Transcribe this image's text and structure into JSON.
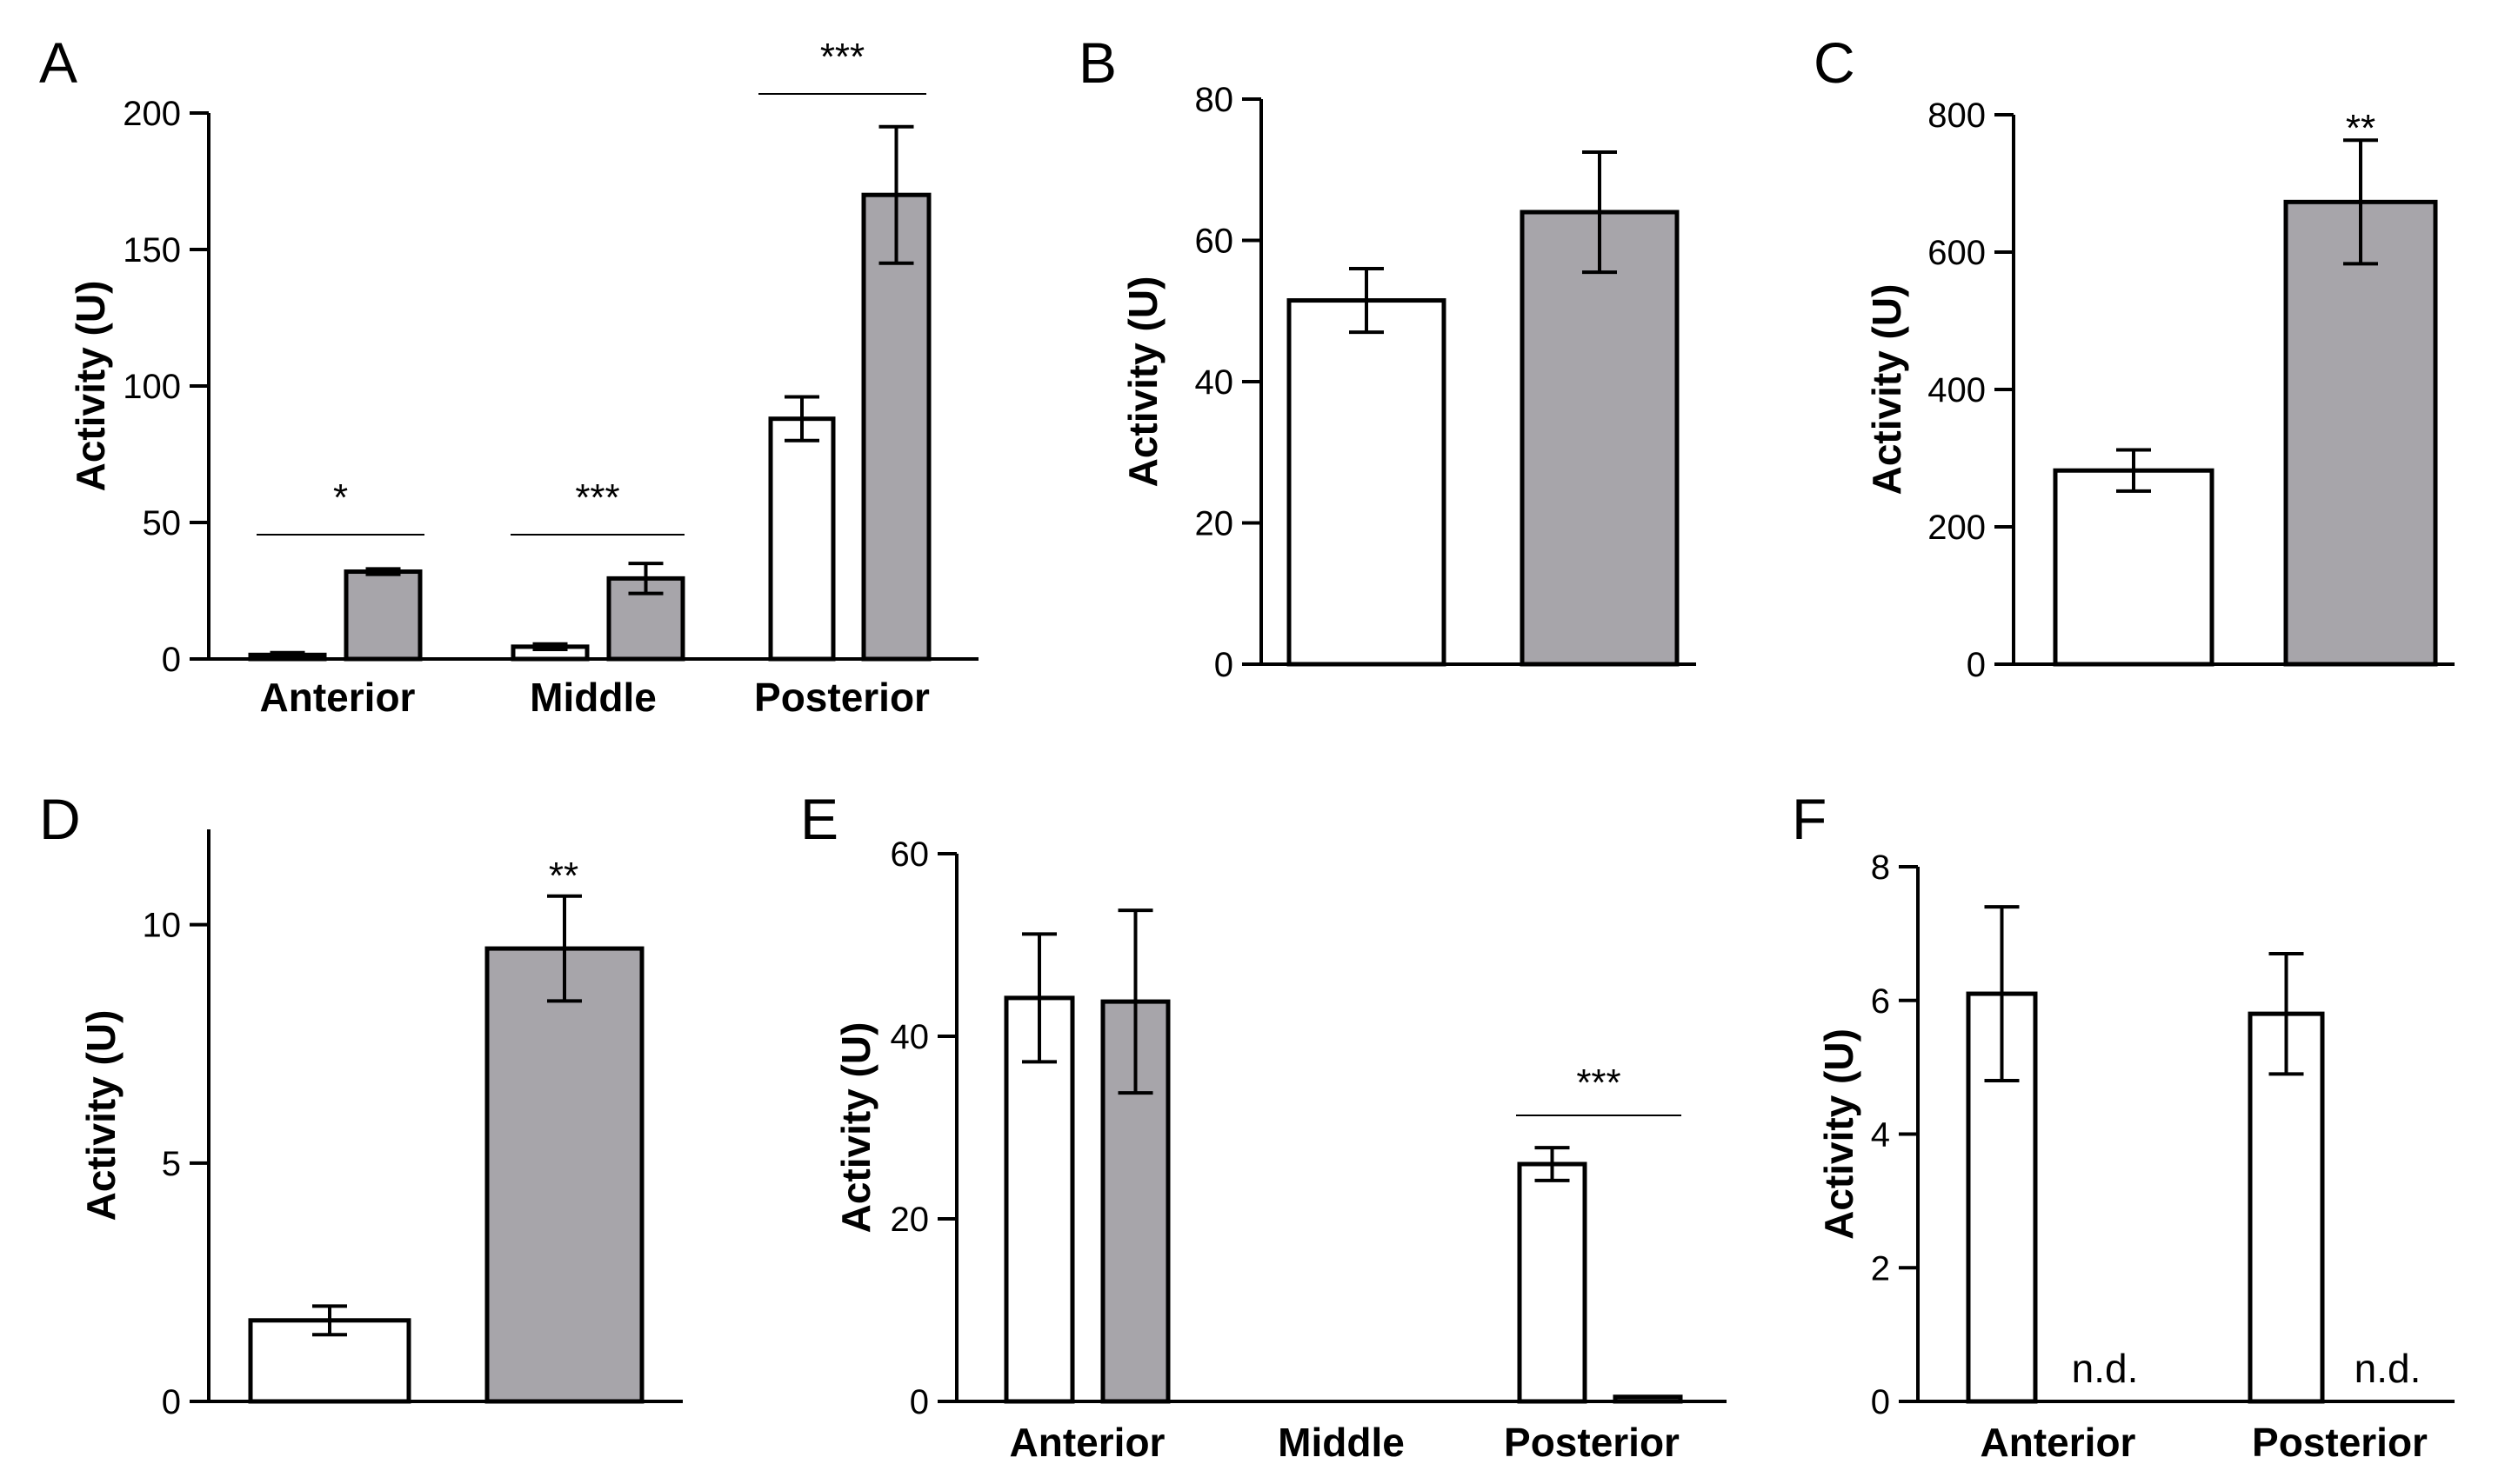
{
  "chart_data": [
    {
      "id": "A",
      "type": "bar",
      "label": "A",
      "ylabel": "Activity (U)",
      "ylim": [
        0,
        200
      ],
      "yticks": [
        0,
        50,
        100,
        150,
        200
      ],
      "categories": [
        "Anterior",
        "Middle",
        "Posterior"
      ],
      "series": [
        {
          "name": "white",
          "color": "#ffffff",
          "values": [
            1.5,
            4.5,
            88
          ],
          "errors": [
            0.8,
            1,
            8
          ]
        },
        {
          "name": "gray",
          "color": "#a7a5aa",
          "values": [
            32,
            29.5,
            170
          ],
          "errors": [
            1,
            5.5,
            25
          ]
        }
      ],
      "significance": [
        "*",
        "***",
        "***"
      ]
    },
    {
      "id": "B",
      "type": "bar",
      "label": "B",
      "ylabel": "Activity (U)",
      "ylim": [
        0,
        80
      ],
      "yticks": [
        0,
        20,
        40,
        60,
        80
      ],
      "series": [
        {
          "name": "white",
          "color": "#ffffff",
          "values": [
            51.5
          ],
          "errors": [
            4.5
          ]
        },
        {
          "name": "gray",
          "color": "#a7a5aa",
          "values": [
            64
          ],
          "errors": [
            8.5
          ]
        }
      ]
    },
    {
      "id": "C",
      "type": "bar",
      "label": "C",
      "ylabel": "Activity (U)",
      "ylim": [
        0,
        800
      ],
      "yticks": [
        0,
        200,
        400,
        600,
        800
      ],
      "series": [
        {
          "name": "white",
          "color": "#ffffff",
          "values": [
            282
          ],
          "errors": [
            30
          ]
        },
        {
          "name": "gray",
          "color": "#a7a5aa",
          "values": [
            673
          ],
          "errors": [
            90
          ]
        }
      ],
      "annotation": "**"
    },
    {
      "id": "D",
      "type": "bar",
      "label": "D",
      "ylabel": "Activity (U)",
      "ylim": [
        0,
        12
      ],
      "yticks": [
        0,
        5,
        10
      ],
      "series": [
        {
          "name": "white",
          "color": "#ffffff",
          "values": [
            1.7
          ],
          "errors": [
            0.3
          ]
        },
        {
          "name": "gray",
          "color": "#a7a5aa",
          "values": [
            9.5
          ],
          "errors": [
            1.1
          ]
        }
      ],
      "annotation": "**"
    },
    {
      "id": "E",
      "type": "bar",
      "label": "E",
      "ylabel": "Activity (U)",
      "ylim": [
        0,
        60
      ],
      "yticks": [
        0,
        20,
        40,
        60
      ],
      "categories": [
        "Anterior",
        "Middle",
        "Posterior"
      ],
      "series": [
        {
          "name": "white",
          "color": "#ffffff",
          "values": [
            44.2,
            0,
            26
          ],
          "errors": [
            7,
            0,
            1.8
          ]
        },
        {
          "name": "gray",
          "color": "#a7a5aa",
          "values": [
            43.8,
            0,
            0.5
          ],
          "errors": [
            10,
            0,
            0
          ]
        }
      ],
      "significance": [
        "",
        "",
        "***"
      ]
    },
    {
      "id": "F",
      "type": "bar",
      "label": "F",
      "ylabel": "Activity (U)",
      "ylim": [
        0,
        8
      ],
      "yticks": [
        0,
        2,
        4,
        6,
        8
      ],
      "categories": [
        "Anterior",
        "Posterior"
      ],
      "series": [
        {
          "name": "white",
          "color": "#ffffff",
          "values": [
            6.1,
            5.8
          ],
          "errors": [
            1.3,
            0.9
          ]
        }
      ],
      "not_detected": [
        "n.d.",
        "n.d."
      ]
    }
  ]
}
